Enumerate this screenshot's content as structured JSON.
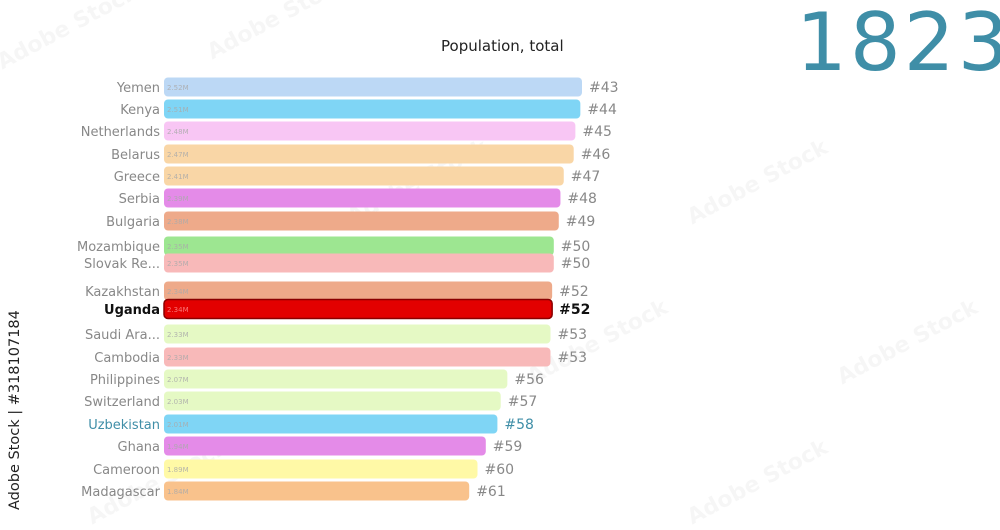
{
  "year": "1823",
  "watermark": {
    "side_text": "Adobe Stock | #318107184",
    "tile_text": "Adobe Stock"
  },
  "chart_data": {
    "type": "bar",
    "title": "Population, total",
    "orientation": "horizontal",
    "unit": "M",
    "highlight": "Uganda",
    "rows": [
      {
        "name": "Yemen",
        "value": 2.52,
        "label": "2.52M",
        "rank": "#43",
        "color": "#bcd8f5",
        "name_color": "#888888",
        "rank_color": "#888888"
      },
      {
        "name": "Kenya",
        "value": 2.51,
        "label": "2.51M",
        "rank": "#44",
        "color": "#7fd5f5",
        "name_color": "#888888",
        "rank_color": "#888888"
      },
      {
        "name": "Netherlands",
        "value": 2.48,
        "label": "2.48M",
        "rank": "#45",
        "color": "#f8c6f4",
        "name_color": "#888888",
        "rank_color": "#888888"
      },
      {
        "name": "Belarus",
        "value": 2.47,
        "label": "2.47M",
        "rank": "#46",
        "color": "#f9d6a6",
        "name_color": "#888888",
        "rank_color": "#888888"
      },
      {
        "name": "Greece",
        "value": 2.41,
        "label": "2.41M",
        "rank": "#47",
        "color": "#f9d6a6",
        "name_color": "#888888",
        "rank_color": "#888888"
      },
      {
        "name": "Serbia",
        "value": 2.39,
        "label": "2.39M",
        "rank": "#48",
        "color": "#e48be8",
        "name_color": "#888888",
        "rank_color": "#888888"
      },
      {
        "name": "Bulgaria",
        "value": 2.38,
        "label": "2.38M",
        "rank": "#49",
        "color": "#eeaa8a",
        "name_color": "#888888",
        "rank_color": "#888888"
      },
      {
        "name": "Mozambique",
        "value": 2.35,
        "label": "2.35M",
        "rank": "#50",
        "color": "#9de691",
        "name_color": "#888888",
        "rank_color": "#888888"
      },
      {
        "name": "Slovak Re...",
        "value": 2.35,
        "label": "2.35M",
        "rank": "#50",
        "color": "#f8b9b9",
        "name_color": "#888888",
        "rank_color": "#888888"
      },
      {
        "name": "Kazakhstan",
        "value": 2.34,
        "label": "2.34M",
        "rank": "#52",
        "color": "#eeaa8a",
        "name_color": "#888888",
        "rank_color": "#888888"
      },
      {
        "name": "Uganda",
        "value": 2.34,
        "label": "2.34M",
        "rank": "#52",
        "color": "#e30000",
        "name_color": "#111111",
        "rank_color": "#111111"
      },
      {
        "name": "Saudi Ara...",
        "value": 2.33,
        "label": "2.33M",
        "rank": "#53",
        "color": "#e5f9c4",
        "name_color": "#888888",
        "rank_color": "#888888"
      },
      {
        "name": "Cambodia",
        "value": 2.33,
        "label": "2.33M",
        "rank": "#53",
        "color": "#f8b9b9",
        "name_color": "#888888",
        "rank_color": "#888888"
      },
      {
        "name": "Philippines",
        "value": 2.07,
        "label": "2.07M",
        "rank": "#56",
        "color": "#e5f9c4",
        "name_color": "#888888",
        "rank_color": "#888888"
      },
      {
        "name": "Switzerland",
        "value": 2.03,
        "label": "2.03M",
        "rank": "#57",
        "color": "#e5f9c4",
        "name_color": "#888888",
        "rank_color": "#888888"
      },
      {
        "name": "Uzbekistan",
        "value": 2.01,
        "label": "2.01M",
        "rank": "#58",
        "color": "#7fd5f5",
        "name_color": "#3f8ea7",
        "rank_color": "#3f8ea7"
      },
      {
        "name": "Ghana",
        "value": 1.94,
        "label": "1.94M",
        "rank": "#59",
        "color": "#e48be8",
        "name_color": "#888888",
        "rank_color": "#888888"
      },
      {
        "name": "Cameroon",
        "value": 1.89,
        "label": "1.89M",
        "rank": "#60",
        "color": "#fff9a6",
        "name_color": "#888888",
        "rank_color": "#888888"
      },
      {
        "name": "Madagascar",
        "value": 1.84,
        "label": "1.84M",
        "rank": "#61",
        "color": "#f9c28c",
        "name_color": "#888888",
        "rank_color": "#888888"
      }
    ]
  }
}
